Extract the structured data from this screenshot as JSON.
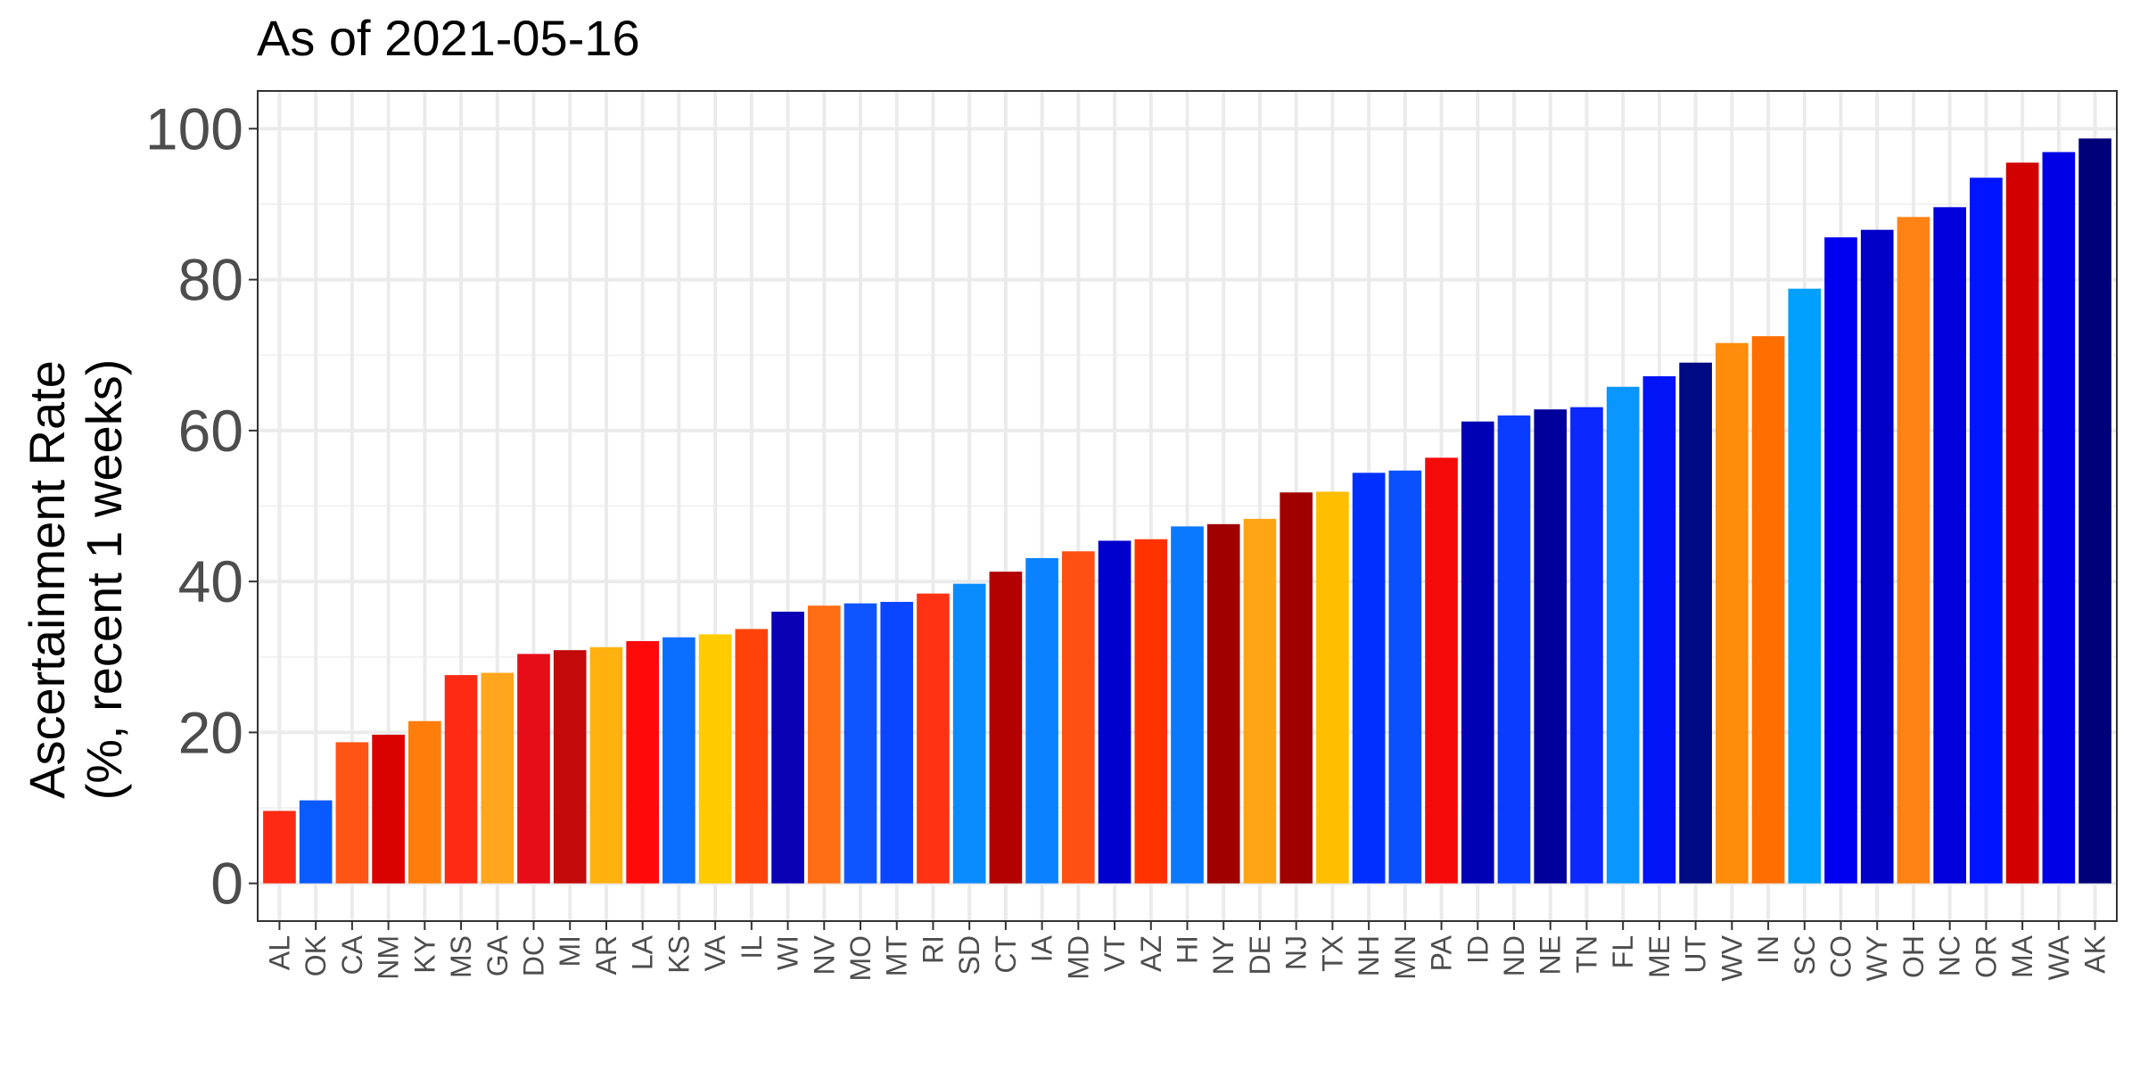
{
  "chart_data": {
    "type": "bar",
    "title": "As of 2021-05-16",
    "ylabel_lines": [
      "Ascertainment Rate",
      "(%, recent 1 weeks)"
    ],
    "xlabel": "",
    "ylim": [
      -5,
      105
    ],
    "yticks": [
      0,
      20,
      40,
      60,
      80,
      100
    ],
    "grid": true,
    "legend": "none",
    "categories": [
      "AL",
      "OK",
      "CA",
      "NM",
      "KY",
      "MS",
      "GA",
      "DC",
      "MI",
      "AR",
      "LA",
      "KS",
      "VA",
      "IL",
      "WI",
      "NV",
      "MO",
      "MT",
      "RI",
      "SD",
      "CT",
      "IA",
      "MD",
      "VT",
      "AZ",
      "HI",
      "NY",
      "DE",
      "NJ",
      "TX",
      "NH",
      "MN",
      "PA",
      "ID",
      "ND",
      "NE",
      "TN",
      "FL",
      "ME",
      "UT",
      "WV",
      "IN",
      "SC",
      "CO",
      "WY",
      "OH",
      "NC",
      "OR",
      "MA",
      "WA",
      "AK"
    ],
    "values": [
      9.6,
      11.0,
      18.7,
      19.7,
      21.5,
      27.6,
      27.9,
      30.4,
      30.9,
      31.3,
      32.1,
      32.6,
      33.0,
      33.7,
      36.0,
      36.8,
      37.1,
      37.3,
      38.4,
      39.7,
      41.3,
      43.1,
      44.0,
      45.4,
      45.6,
      47.3,
      47.6,
      48.3,
      51.8,
      51.9,
      54.4,
      54.7,
      56.4,
      61.2,
      62.0,
      62.8,
      63.1,
      65.8,
      67.2,
      69.0,
      71.6,
      72.5,
      78.8,
      85.6,
      86.6,
      88.3,
      89.6,
      93.5,
      95.5,
      96.9,
      98.7
    ],
    "colors": [
      "#ff2a14",
      "#0a5bff",
      "#ff5414",
      "#d90000",
      "#ff7d0a",
      "#ff2a14",
      "#ffa51e",
      "#e60d19",
      "#c20a0a",
      "#ffb10f",
      "#ff0a0a",
      "#0a6eff",
      "#ffcc00",
      "#ff4209",
      "#0a00b4",
      "#ff6e14",
      "#0f55ff",
      "#0a46ff",
      "#ff3214",
      "#0a8cff",
      "#b30000",
      "#0a82ff",
      "#ff5014",
      "#0000cd",
      "#ff3200",
      "#0a78ff",
      "#a00000",
      "#ffa514",
      "#a00000",
      "#ffbe00",
      "#0030ff",
      "#0a50ff",
      "#f50a0a",
      "#0000b4",
      "#0a3cff",
      "#00009b",
      "#0a28ff",
      "#0a96ff",
      "#0014f5",
      "#000a82",
      "#ff8c0a",
      "#ff6e00",
      "#00a0ff",
      "#0000f0",
      "#0000c8",
      "#ff8214",
      "#0000dc",
      "#0014ff",
      "#d20000",
      "#0000e6",
      "#000078"
    ]
  }
}
